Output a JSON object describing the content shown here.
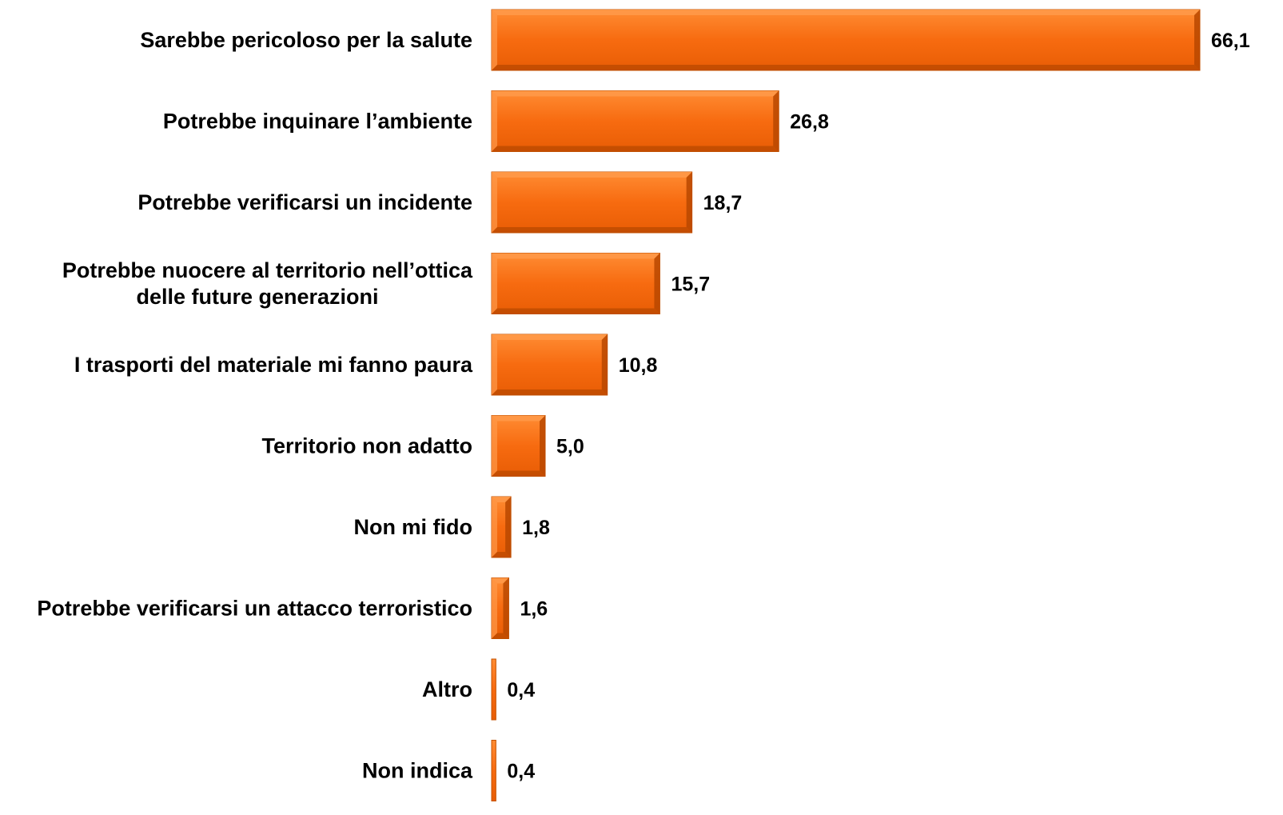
{
  "chart_data": {
    "type": "bar",
    "orientation": "horizontal",
    "categories": [
      [
        "Sarebbe pericoloso per la salute"
      ],
      [
        "Potrebbe  inquinare  l’ambiente"
      ],
      [
        "Potrebbe verificarsi un incidente"
      ],
      [
        "Potrebbe  nuocere  al territorio  nell’ottica",
        "delle  future  generazioni"
      ],
      [
        "I trasporti del materiale mi fanno paura"
      ],
      [
        "Territorio non adatto"
      ],
      [
        "Non mi fido"
      ],
      [
        "Potrebbe verificarsi un attacco terroristico"
      ],
      [
        "Altro"
      ],
      [
        "Non indica"
      ]
    ],
    "values": [
      66.1,
      26.8,
      18.7,
      15.7,
      10.8,
      5.0,
      1.8,
      1.6,
      0.4,
      0.4
    ],
    "value_labels": [
      "66,1",
      "26,8",
      "18,7",
      "15,7",
      "10,8",
      "5,0",
      "1,8",
      "1,6",
      "0,4",
      "0,4"
    ],
    "xlim": [
      0,
      66.1
    ],
    "grid": false,
    "legend": "none",
    "colors": {
      "bar_fill": "#f76b10",
      "bar_light": "#ff9a4a",
      "bar_dark": "#b84800",
      "bar_edge": "#c45200"
    }
  }
}
